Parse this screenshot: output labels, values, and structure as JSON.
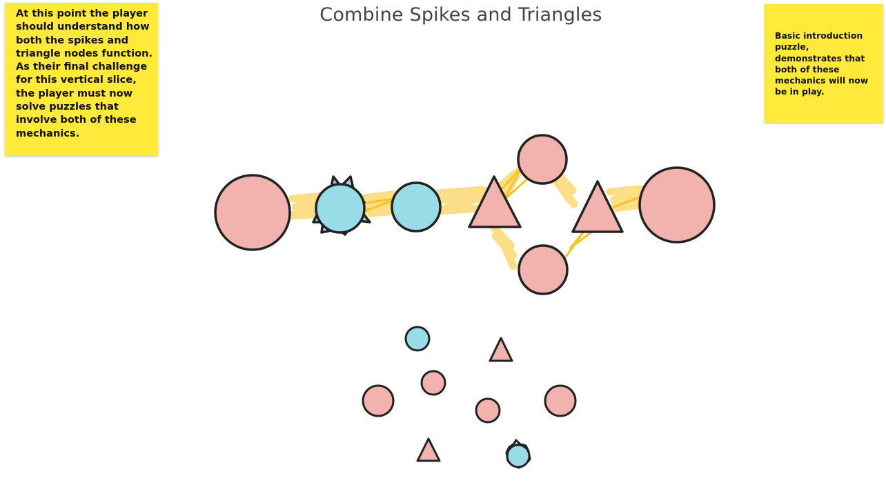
{
  "board": {
    "title": "Combine Spikes and Triangles"
  },
  "notes": {
    "left": "At this point the player should understand how both the spikes and triangle nodes function. As their final challenge for this vertical slice, the player must now solve puzzles that involve both of these mechanics.",
    "right": "Basic introduction puzzle, demonstrates that both of these mechanics will now be in play."
  },
  "colors": {
    "note": "#FFEA3B",
    "node_pink": "#F2B3AE",
    "node_blue": "#98DCE6",
    "outline": "#222222",
    "connector": "#F7C325"
  },
  "icons": {
    "spiked_node": "spiked-circle-icon",
    "triangle_node": "triangle-icon",
    "circle_node": "circle-icon"
  }
}
